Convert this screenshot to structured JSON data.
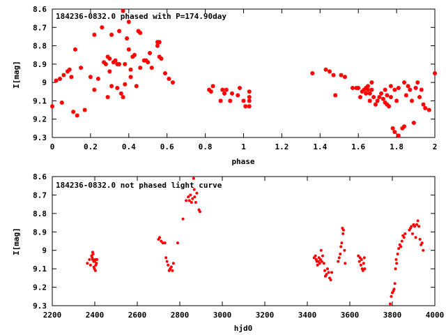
{
  "colors": {
    "marker": "#ff0000",
    "axis": "#000000",
    "background": "#ffffff"
  },
  "chart_data": [
    {
      "type": "scatter",
      "title": "184236-0832.0 phased with P=174.90day",
      "xlabel": "phase",
      "ylabel": "I[mag]",
      "xlim": [
        0,
        2
      ],
      "ylim": [
        8.6,
        9.3
      ],
      "y_inverted": true,
      "grid": false,
      "legend": "none",
      "marker": "asterisk",
      "x_ticks": [
        "0",
        "0.2",
        "0.4",
        "0.6",
        "0.8",
        "1",
        "1.2",
        "1.4",
        "1.6",
        "1.8",
        "2"
      ],
      "y_ticks": [
        "8.6",
        "8.7",
        "8.8",
        "8.9",
        "9",
        "9.1",
        "9.2",
        "9.3"
      ],
      "points": [
        [
          0.0,
          9.13
        ],
        [
          0.02,
          8.99
        ],
        [
          0.04,
          8.98
        ],
        [
          0.05,
          9.11
        ],
        [
          0.06,
          8.96
        ],
        [
          0.08,
          8.94
        ],
        [
          0.09,
          8.93
        ],
        [
          0.1,
          8.97
        ],
        [
          0.11,
          9.16
        ],
        [
          0.12,
          8.82
        ],
        [
          0.13,
          9.18
        ],
        [
          0.15,
          8.92
        ],
        [
          0.17,
          9.15
        ],
        [
          0.2,
          8.97
        ],
        [
          0.22,
          9.04
        ],
        [
          0.22,
          8.74
        ],
        [
          0.24,
          8.98
        ],
        [
          0.26,
          8.7
        ],
        [
          0.27,
          8.89
        ],
        [
          0.28,
          8.9
        ],
        [
          0.29,
          8.86
        ],
        [
          0.29,
          9.08
        ],
        [
          0.3,
          8.87
        ],
        [
          0.3,
          8.94
        ],
        [
          0.31,
          8.74
        ],
        [
          0.31,
          9.02
        ],
        [
          0.32,
          8.89
        ],
        [
          0.33,
          8.88
        ],
        [
          0.34,
          8.9
        ],
        [
          0.34,
          9.03
        ],
        [
          0.35,
          8.72
        ],
        [
          0.35,
          8.9
        ],
        [
          0.36,
          9.06
        ],
        [
          0.37,
          9.08
        ],
        [
          0.37,
          8.61
        ],
        [
          0.38,
          8.9
        ],
        [
          0.38,
          9.01
        ],
        [
          0.39,
          8.76
        ],
        [
          0.4,
          8.82
        ],
        [
          0.4,
          8.67
        ],
        [
          0.41,
          8.97
        ],
        [
          0.41,
          8.93
        ],
        [
          0.42,
          8.86
        ],
        [
          0.43,
          8.85
        ],
        [
          0.44,
          9.02
        ],
        [
          0.45,
          8.72
        ],
        [
          0.46,
          8.92
        ],
        [
          0.46,
          8.73
        ],
        [
          0.48,
          8.88
        ],
        [
          0.49,
          8.88
        ],
        [
          0.5,
          8.89
        ],
        [
          0.51,
          8.84
        ],
        [
          0.52,
          8.92
        ],
        [
          0.55,
          8.78
        ],
        [
          0.55,
          8.8
        ],
        [
          0.56,
          8.86
        ],
        [
          0.56,
          8.78
        ],
        [
          0.57,
          8.87
        ],
        [
          0.59,
          8.95
        ],
        [
          0.61,
          8.98
        ],
        [
          0.63,
          9.0
        ],
        [
          0.82,
          9.04
        ],
        [
          0.83,
          9.05
        ],
        [
          0.84,
          9.02
        ],
        [
          0.88,
          9.1
        ],
        [
          0.89,
          9.04
        ],
        [
          0.9,
          9.06
        ],
        [
          0.91,
          9.04
        ],
        [
          0.93,
          9.1
        ],
        [
          0.94,
          9.06
        ],
        [
          0.97,
          9.07
        ],
        [
          0.98,
          9.03
        ],
        [
          1.0,
          9.1
        ],
        [
          1.01,
          9.13
        ],
        [
          1.03,
          9.13
        ],
        [
          1.03,
          9.05
        ],
        [
          1.03,
          9.08
        ],
        [
          1.03,
          9.1
        ],
        [
          1.36,
          8.95
        ],
        [
          1.43,
          8.93
        ],
        [
          1.45,
          8.94
        ],
        [
          1.47,
          8.96
        ],
        [
          1.48,
          9.07
        ],
        [
          1.51,
          8.96
        ],
        [
          1.53,
          8.97
        ],
        [
          1.57,
          9.03
        ],
        [
          1.59,
          9.03
        ],
        [
          1.6,
          9.03
        ],
        [
          1.61,
          9.08
        ],
        [
          1.62,
          9.05
        ],
        [
          1.63,
          9.04
        ],
        [
          1.64,
          9.03
        ],
        [
          1.64,
          9.06
        ],
        [
          1.65,
          9.04
        ],
        [
          1.65,
          9.02
        ],
        [
          1.66,
          9.06
        ],
        [
          1.66,
          9.1
        ],
        [
          1.67,
          9.0
        ],
        [
          1.67,
          9.04
        ],
        [
          1.68,
          9.08
        ],
        [
          1.69,
          9.12
        ],
        [
          1.7,
          9.1
        ],
        [
          1.71,
          9.08
        ],
        [
          1.72,
          9.06
        ],
        [
          1.73,
          9.09
        ],
        [
          1.74,
          9.04
        ],
        [
          1.74,
          9.11
        ],
        [
          1.75,
          9.07
        ],
        [
          1.75,
          9.12
        ],
        [
          1.76,
          9.13
        ],
        [
          1.77,
          9.08
        ],
        [
          1.77,
          9.02
        ],
        [
          1.78,
          9.25
        ],
        [
          1.79,
          9.04
        ],
        [
          1.79,
          9.27
        ],
        [
          1.8,
          9.1
        ],
        [
          1.81,
          9.03
        ],
        [
          1.81,
          9.29
        ],
        [
          1.83,
          9.25
        ],
        [
          1.84,
          9.0
        ],
        [
          1.84,
          9.24
        ],
        [
          1.85,
          9.07
        ],
        [
          1.86,
          9.02
        ],
        [
          1.87,
          9.04
        ],
        [
          1.88,
          9.1
        ],
        [
          1.89,
          9.22
        ],
        [
          1.9,
          9.03
        ],
        [
          1.91,
          9.0
        ],
        [
          1.92,
          9.08
        ],
        [
          1.93,
          9.04
        ],
        [
          1.94,
          9.12
        ],
        [
          1.95,
          9.14
        ],
        [
          1.97,
          9.15
        ],
        [
          2.0,
          8.95
        ]
      ]
    },
    {
      "type": "scatter",
      "title": "184236-0832.0 not phased light curve",
      "xlabel": "hjd0",
      "ylabel": "I[mag]",
      "xlim": [
        2200,
        4000
      ],
      "ylim": [
        8.6,
        9.3
      ],
      "y_inverted": true,
      "grid": false,
      "legend": "none",
      "marker": "dot",
      "x_ticks": [
        "2200",
        "2400",
        "2600",
        "2800",
        "3000",
        "3200",
        "3400",
        "3600",
        "3800",
        "4000"
      ],
      "y_ticks": [
        "8.6",
        "8.7",
        "8.8",
        "8.9",
        "9",
        "9.1",
        "9.2",
        "9.3"
      ],
      "points": [
        [
          2365,
          9.07
        ],
        [
          2375,
          9.05
        ],
        [
          2380,
          9.08
        ],
        [
          2385,
          9.03
        ],
        [
          2388,
          9.04
        ],
        [
          2390,
          9.05
        ],
        [
          2392,
          9.02
        ],
        [
          2395,
          9.06
        ],
        [
          2398,
          9.1
        ],
        [
          2400,
          9.06
        ],
        [
          2402,
          9.05
        ],
        [
          2405,
          9.08
        ],
        [
          2408,
          9.07
        ],
        [
          2410,
          9.05
        ],
        [
          2390,
          9.01
        ],
        [
          2396,
          9.09
        ],
        [
          2403,
          9.11
        ],
        [
          2700,
          8.94
        ],
        [
          2705,
          8.93
        ],
        [
          2712,
          8.95
        ],
        [
          2720,
          8.96
        ],
        [
          2730,
          8.96
        ],
        [
          2735,
          9.04
        ],
        [
          2740,
          9.06
        ],
        [
          2745,
          9.08
        ],
        [
          2750,
          9.11
        ],
        [
          2755,
          9.1
        ],
        [
          2760,
          9.09
        ],
        [
          2765,
          9.11
        ],
        [
          2770,
          9.07
        ],
        [
          2790,
          8.96
        ],
        [
          2815,
          8.83
        ],
        [
          2830,
          8.73
        ],
        [
          2840,
          8.71
        ],
        [
          2845,
          8.73
        ],
        [
          2850,
          8.7
        ],
        [
          2855,
          8.74
        ],
        [
          2860,
          8.72
        ],
        [
          2865,
          8.61
        ],
        [
          2868,
          8.67
        ],
        [
          2870,
          8.71
        ],
        [
          2875,
          8.74
        ],
        [
          2880,
          8.69
        ],
        [
          2890,
          8.78
        ],
        [
          2895,
          8.79
        ],
        [
          3432,
          9.04
        ],
        [
          3438,
          9.03
        ],
        [
          3442,
          9.05
        ],
        [
          3445,
          9.06
        ],
        [
          3448,
          9.08
        ],
        [
          3452,
          9.06
        ],
        [
          3455,
          9.04
        ],
        [
          3458,
          9.07
        ],
        [
          3462,
          9.05
        ],
        [
          3465,
          9.0
        ],
        [
          3468,
          9.06
        ],
        [
          3472,
          9.03
        ],
        [
          3478,
          9.07
        ],
        [
          3482,
          9.11
        ],
        [
          3485,
          9.14
        ],
        [
          3490,
          9.13
        ],
        [
          3495,
          9.1
        ],
        [
          3500,
          9.12
        ],
        [
          3505,
          9.15
        ],
        [
          3510,
          9.16
        ],
        [
          3515,
          9.12
        ],
        [
          3545,
          9.06
        ],
        [
          3550,
          9.04
        ],
        [
          3555,
          9.02
        ],
        [
          3558,
          8.98
        ],
        [
          3562,
          8.96
        ],
        [
          3565,
          8.88
        ],
        [
          3568,
          8.91
        ],
        [
          3570,
          8.89
        ],
        [
          3575,
          9.0
        ],
        [
          3578,
          9.07
        ],
        [
          3640,
          9.03
        ],
        [
          3645,
          9.06
        ],
        [
          3648,
          9.04
        ],
        [
          3652,
          9.08
        ],
        [
          3655,
          9.05
        ],
        [
          3658,
          9.1
        ],
        [
          3662,
          9.11
        ],
        [
          3665,
          9.07
        ],
        [
          3668,
          9.04
        ],
        [
          3670,
          9.1
        ],
        [
          3790,
          9.29
        ],
        [
          3795,
          9.25
        ],
        [
          3800,
          9.23
        ],
        [
          3805,
          9.22
        ],
        [
          3808,
          9.21
        ],
        [
          3812,
          9.18
        ],
        [
          3815,
          9.1
        ],
        [
          3818,
          9.05
        ],
        [
          3820,
          9.07
        ],
        [
          3825,
          9.02
        ],
        [
          3830,
          8.99
        ],
        [
          3835,
          8.97
        ],
        [
          3840,
          8.98
        ],
        [
          3845,
          8.95
        ],
        [
          3850,
          8.92
        ],
        [
          3855,
          8.93
        ],
        [
          3860,
          8.91
        ],
        [
          3880,
          8.89
        ],
        [
          3885,
          8.88
        ],
        [
          3890,
          8.87
        ],
        [
          3895,
          8.91
        ],
        [
          3900,
          8.86
        ],
        [
          3905,
          8.87
        ],
        [
          3910,
          8.93
        ],
        [
          3915,
          8.86
        ],
        [
          3920,
          8.84
        ],
        [
          3925,
          8.87
        ],
        [
          3930,
          8.94
        ],
        [
          3935,
          8.97
        ],
        [
          3940,
          8.96
        ],
        [
          3945,
          9.0
        ]
      ]
    }
  ]
}
